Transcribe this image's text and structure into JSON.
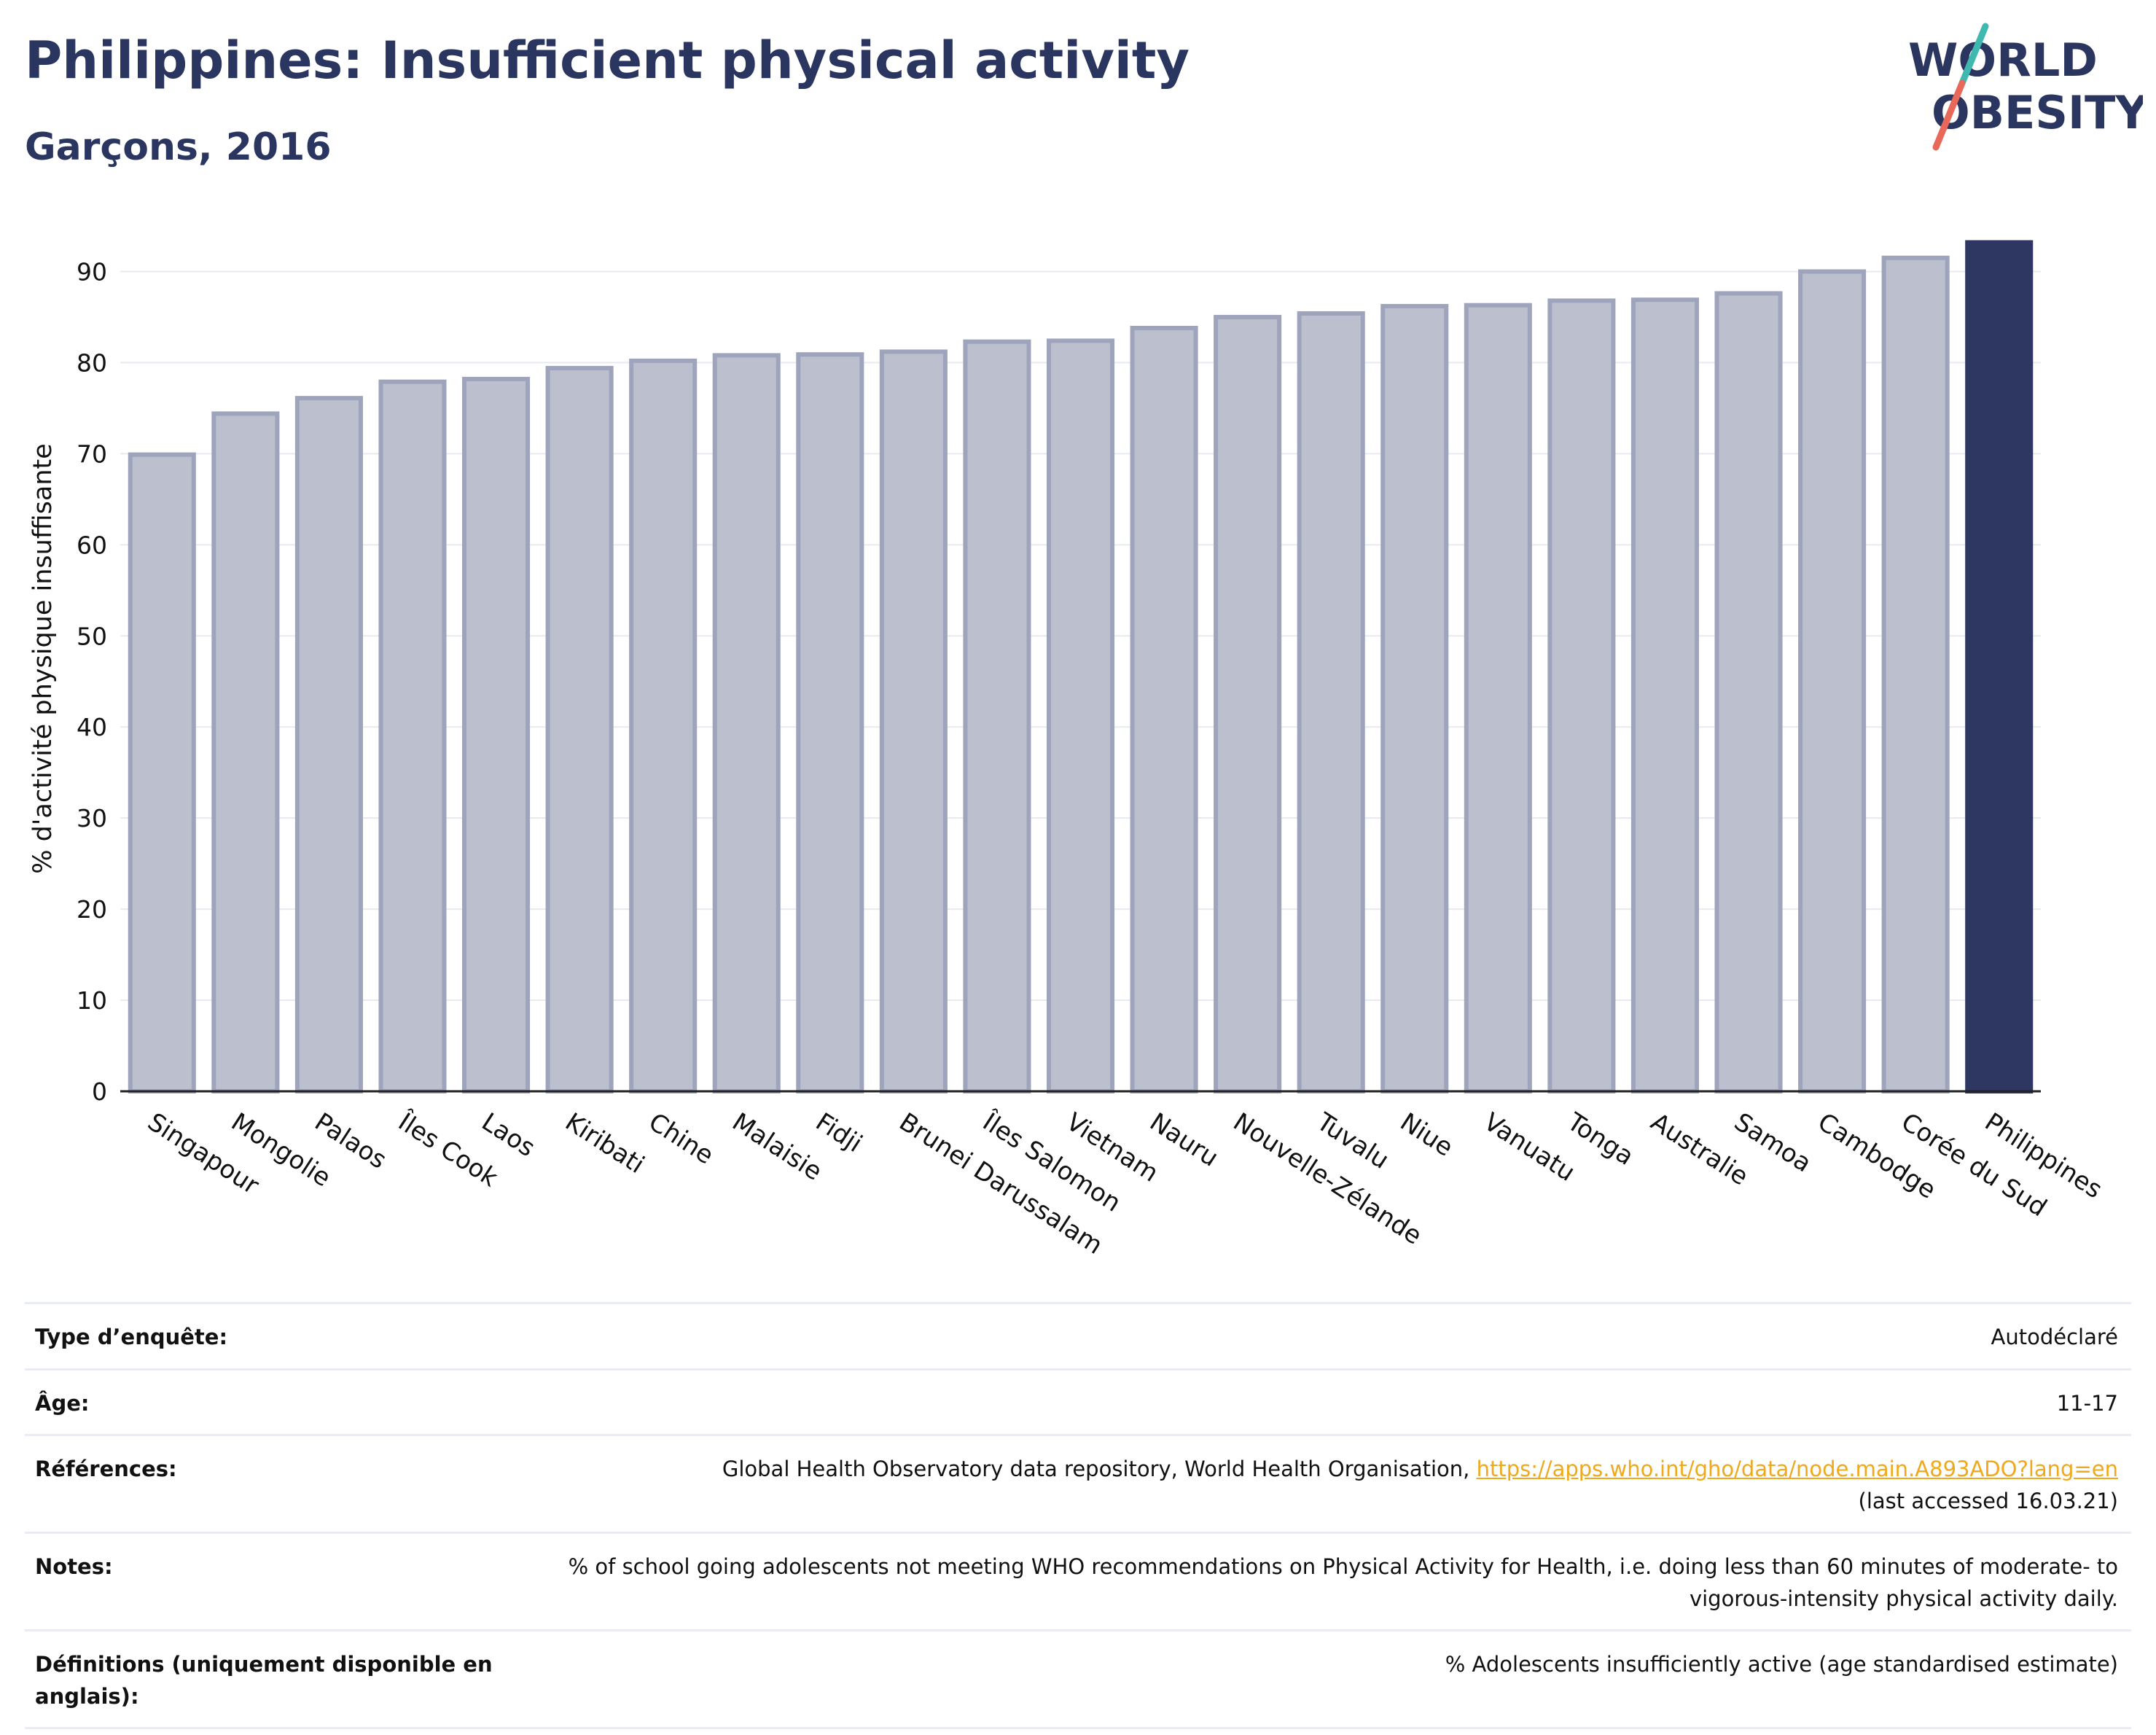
{
  "header": {
    "title": "Philippines: Insufficient physical activity",
    "subtitle": "Garçons, 2016"
  },
  "logo": {
    "line1": "WORLD",
    "line2": "OBESITY"
  },
  "colors": {
    "highlight_bar": "#2d3761",
    "other_bars_fill": "#bcc0ce",
    "other_bars_border": "#9ea4bb",
    "title": "#2a3560",
    "link": "#f0a81c",
    "logo_slash_top": "#3fb8b0",
    "logo_slash_bottom": "#e8685a"
  },
  "chart_data": {
    "type": "bar",
    "title": "Philippines: Insufficient physical activity",
    "subtitle": "Garçons, 2016",
    "xlabel": "",
    "ylabel": "% d'activité physique insuffisante",
    "ylim": [
      0,
      95
    ],
    "yticks": [
      0,
      10,
      20,
      30,
      40,
      50,
      60,
      70,
      80,
      90
    ],
    "grid": true,
    "legend": "none",
    "highlight": "Philippines",
    "categories": [
      "Singapour",
      "Mongolie",
      "Palaos",
      "Îles Cook",
      "Laos",
      "Kiribati",
      "Chine",
      "Malaisie",
      "Fidji",
      "Brunei Darussalam",
      "Îles Salomon",
      "Vietnam",
      "Nauru",
      "Nouvelle-Zélande",
      "Tuvalu",
      "Niue",
      "Vanuatu",
      "Tonga",
      "Australie",
      "Samoa",
      "Cambodge",
      "Corée du Sud",
      "Philippines"
    ],
    "values": [
      69.9,
      74.4,
      76.1,
      77.9,
      78.2,
      79.4,
      80.2,
      80.8,
      80.9,
      81.2,
      82.3,
      82.4,
      83.8,
      85.0,
      85.4,
      86.2,
      86.3,
      86.8,
      86.9,
      87.6,
      90.0,
      91.5,
      93.2
    ]
  },
  "info": {
    "rows": [
      {
        "label": "Type d’enquête:",
        "value": "Autodéclaré"
      },
      {
        "label": "Âge:",
        "value": "11-17"
      },
      {
        "label": "Références:",
        "value": "Global Health Observatory data repository, World Health Organisation,",
        "link": "https://apps.who.int/gho/data/node.main.A893ADO?lang=en",
        "extra": "(last accessed 16.03.21)"
      },
      {
        "label": "Notes:",
        "value": "% of school going adolescents not meeting WHO recommendations on Physical Activity for Health, i.e. doing less than 60 minutes of moderate- to vigorous-intensity physical activity daily."
      },
      {
        "label": "Définitions (uniquement disponible en anglais):",
        "value": "% Adolescents insufficiently active (age standardised estimate)"
      }
    ]
  }
}
